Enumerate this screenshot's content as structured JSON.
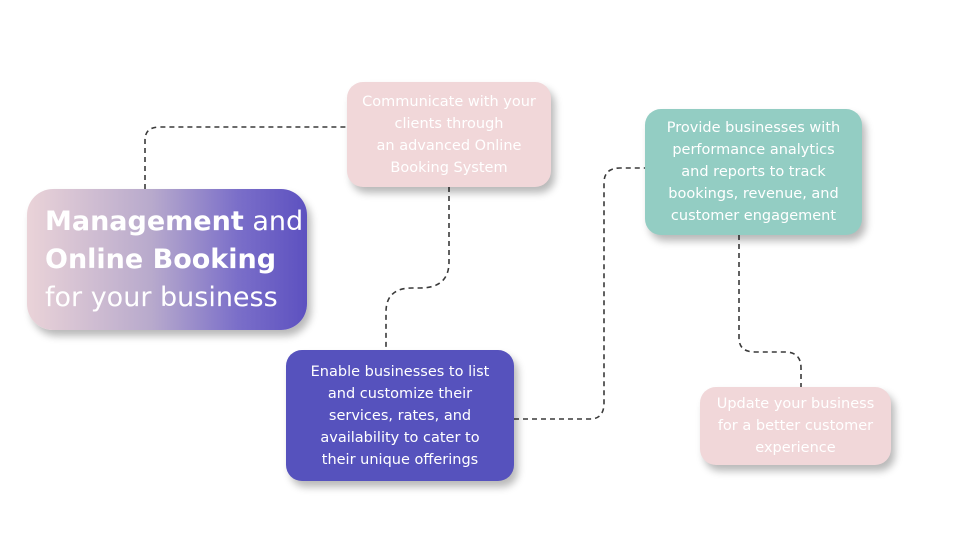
{
  "hero": {
    "line1_bold": "Management",
    "line1_rest": " and",
    "line2_bold": "Online Booking",
    "line3": "for your business"
  },
  "steps": [
    {
      "id": "communicate",
      "color": "#f1d7d9",
      "lines": [
        "Communicate with your",
        "clients through",
        "an advanced Online",
        "Booking System"
      ]
    },
    {
      "id": "enable",
      "color": "#5652bd",
      "lines": [
        "Enable businesses to list",
        "and customize their",
        "services, rates, and",
        "availability to cater to",
        "their unique offerings"
      ]
    },
    {
      "id": "analytics",
      "color": "#93cdc3",
      "lines": [
        "Provide businesses with",
        "performance analytics",
        "and reports to track",
        "bookings, revenue, and",
        "customer engagement"
      ]
    },
    {
      "id": "update",
      "color": "#f1d7d9",
      "lines": [
        "Update your business",
        "for a better customer",
        "experience"
      ]
    }
  ]
}
